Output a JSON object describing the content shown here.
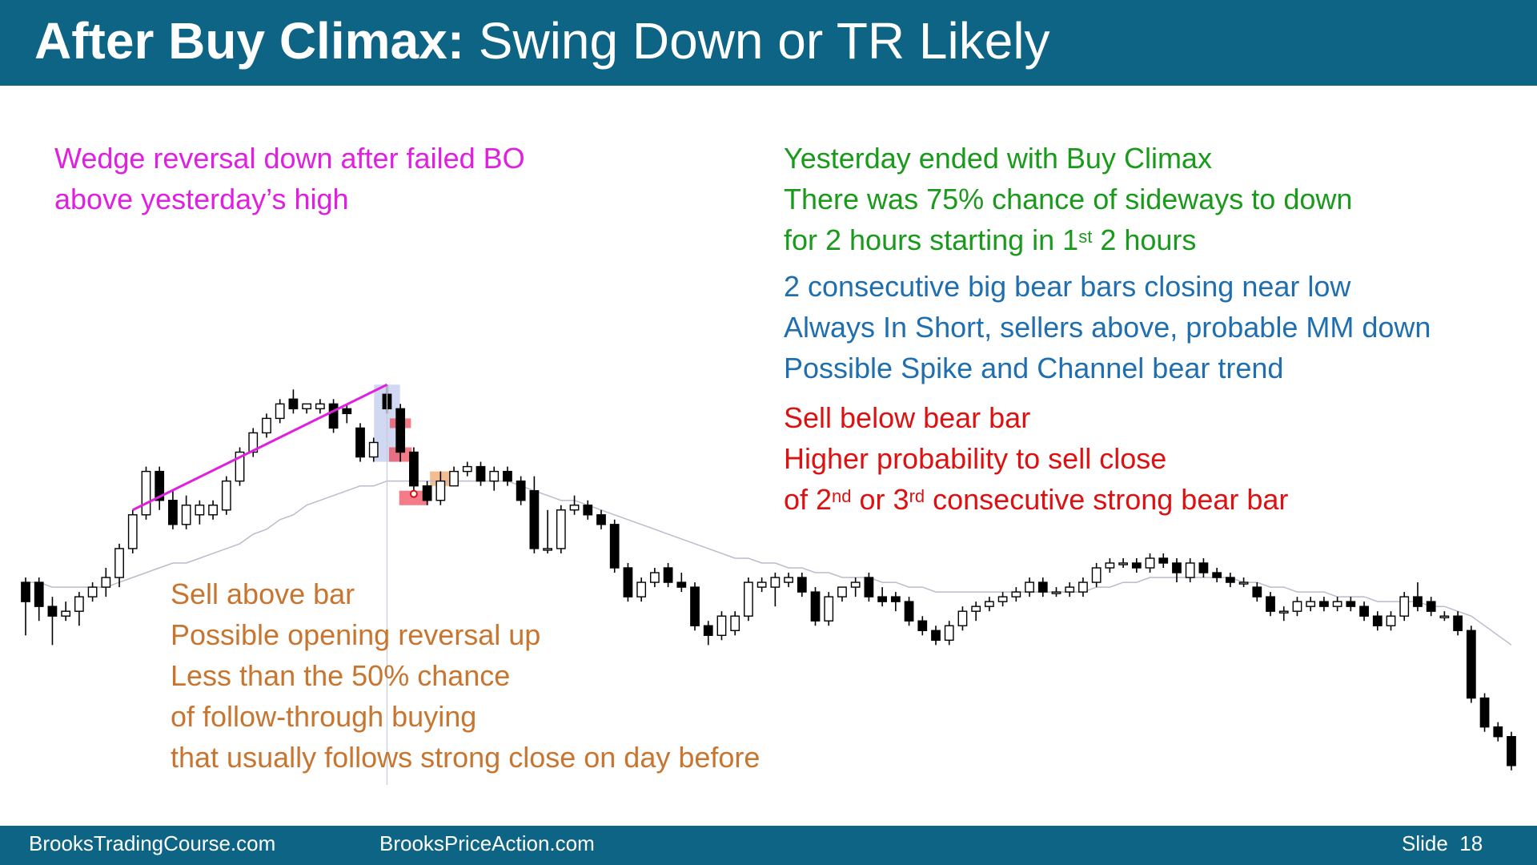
{
  "header": {
    "title_bold": "After Buy Climax:",
    "title_rest": " Swing Down or TR Likely"
  },
  "notes": {
    "wedge": [
      "Wedge reversal down after failed BO",
      "above yesterday’s high"
    ],
    "green": {
      "line1": "Yesterday ended with Buy Climax",
      "line2": "There was 75% chance of sideways to down",
      "line3_a": "for 2 hours starting in 1",
      "line3_sup": "st",
      "line3_b": " 2 hours"
    },
    "blue": [
      "2 consecutive big bear bars closing near low",
      "Always In Short, sellers above, probable MM down",
      "Possible Spike and Channel bear trend"
    ],
    "red": {
      "line1": "Sell below bear bar",
      "line2": "Higher probability to sell close",
      "line3_a": "of 2",
      "line3_sup1": "nd",
      "line3_b": " or 3",
      "line3_sup2": "rd",
      "line3_c": " consecutive strong bear bar"
    },
    "orange": [
      "Sell above bar",
      "Possible opening reversal up",
      "Less than the 50% chance",
      "of follow-through buying",
      "that usually follows strong close on day before"
    ]
  },
  "footer": {
    "site1": "BrooksTradingCourse.com",
    "site2": "BrooksPriceAction.com",
    "slide": "Slide  18"
  },
  "colors": {
    "header_bg": "#0d6485",
    "wedge_line": "#e020e0",
    "ema": "#b8bccc",
    "highlight_blue": "#aab8e8",
    "highlight_red": "#ee4455",
    "highlight_orange": "#f0a060"
  },
  "chart_data": {
    "type": "candlestick",
    "title": "",
    "xlabel": "",
    "ylabel": "",
    "ylim": [
      0,
      100
    ],
    "note": "",
    "bars": [
      {
        "o": 47,
        "h": 48,
        "l": 36,
        "c": 43
      },
      {
        "o": 47,
        "h": 48,
        "l": 39,
        "c": 42
      },
      {
        "o": 42,
        "h": 44,
        "l": 34,
        "c": 40
      },
      {
        "o": 40,
        "h": 43,
        "l": 39,
        "c": 41
      },
      {
        "o": 41,
        "h": 45,
        "l": 38,
        "c": 44
      },
      {
        "o": 44,
        "h": 47,
        "l": 43,
        "c": 46
      },
      {
        "o": 46,
        "h": 50,
        "l": 44,
        "c": 48
      },
      {
        "o": 48,
        "h": 55,
        "l": 46,
        "c": 54
      },
      {
        "o": 54,
        "h": 62,
        "l": 53,
        "c": 61
      },
      {
        "o": 61,
        "h": 71,
        "l": 60,
        "c": 70
      },
      {
        "o": 70,
        "h": 71,
        "l": 62,
        "c": 64
      },
      {
        "o": 64,
        "h": 66,
        "l": 58,
        "c": 59
      },
      {
        "o": 59,
        "h": 65,
        "l": 58,
        "c": 63
      },
      {
        "o": 61,
        "h": 64,
        "l": 59,
        "c": 63
      },
      {
        "o": 61,
        "h": 64,
        "l": 60,
        "c": 63
      },
      {
        "o": 62,
        "h": 69,
        "l": 61,
        "c": 68
      },
      {
        "o": 68,
        "h": 75,
        "l": 67,
        "c": 74
      },
      {
        "o": 74,
        "h": 79,
        "l": 73,
        "c": 78
      },
      {
        "o": 78,
        "h": 82,
        "l": 77,
        "c": 81
      },
      {
        "o": 81,
        "h": 85,
        "l": 80,
        "c": 84
      },
      {
        "o": 85,
        "h": 87,
        "l": 82,
        "c": 83
      },
      {
        "o": 83,
        "h": 84,
        "l": 82,
        "c": 84
      },
      {
        "o": 83,
        "h": 85,
        "l": 82,
        "c": 84
      },
      {
        "o": 84,
        "h": 85,
        "l": 78,
        "c": 79
      },
      {
        "o": 83,
        "h": 84,
        "l": 80,
        "c": 82
      },
      {
        "o": 79,
        "h": 80,
        "l": 72,
        "c": 73
      },
      {
        "o": 73,
        "h": 77,
        "l": 72,
        "c": 76
      },
      {
        "o": 86,
        "h": 88,
        "l": 82,
        "c": 83
      },
      {
        "o": 83,
        "h": 84,
        "l": 72,
        "c": 74
      },
      {
        "o": 74,
        "h": 75,
        "l": 66,
        "c": 67
      },
      {
        "o": 67,
        "h": 68,
        "l": 63,
        "c": 64
      },
      {
        "o": 64,
        "h": 70,
        "l": 63,
        "c": 68
      },
      {
        "o": 67,
        "h": 71,
        "l": 67,
        "c": 70
      },
      {
        "o": 70,
        "h": 72,
        "l": 69,
        "c": 71
      },
      {
        "o": 71,
        "h": 72,
        "l": 67,
        "c": 68
      },
      {
        "o": 68,
        "h": 71,
        "l": 66,
        "c": 70
      },
      {
        "o": 70,
        "h": 71,
        "l": 67,
        "c": 68
      },
      {
        "o": 68,
        "h": 69,
        "l": 63,
        "c": 64
      },
      {
        "o": 66,
        "h": 69,
        "l": 53,
        "c": 54
      },
      {
        "o": 54,
        "h": 62,
        "l": 53,
        "c": 54
      },
      {
        "o": 54,
        "h": 63,
        "l": 53,
        "c": 62
      },
      {
        "o": 62,
        "h": 65,
        "l": 61,
        "c": 63
      },
      {
        "o": 63,
        "h": 64,
        "l": 60,
        "c": 61
      },
      {
        "o": 61,
        "h": 62,
        "l": 58,
        "c": 59
      },
      {
        "o": 59,
        "h": 60,
        "l": 49,
        "c": 50
      },
      {
        "o": 50,
        "h": 51,
        "l": 43,
        "c": 44
      },
      {
        "o": 44,
        "h": 48,
        "l": 43,
        "c": 47
      },
      {
        "o": 47,
        "h": 50,
        "l": 46,
        "c": 49
      },
      {
        "o": 50,
        "h": 51,
        "l": 46,
        "c": 47
      },
      {
        "o": 47,
        "h": 49,
        "l": 45,
        "c": 46
      },
      {
        "o": 46,
        "h": 47,
        "l": 37,
        "c": 38
      },
      {
        "o": 38,
        "h": 39,
        "l": 34,
        "c": 36
      },
      {
        "o": 36,
        "h": 41,
        "l": 35,
        "c": 40
      },
      {
        "o": 37,
        "h": 41,
        "l": 36,
        "c": 40
      },
      {
        "o": 40,
        "h": 48,
        "l": 39,
        "c": 47
      },
      {
        "o": 46,
        "h": 48,
        "l": 45,
        "c": 47
      },
      {
        "o": 46,
        "h": 49,
        "l": 42,
        "c": 48
      },
      {
        "o": 47,
        "h": 49,
        "l": 46,
        "c": 48
      },
      {
        "o": 48,
        "h": 49,
        "l": 44,
        "c": 45
      },
      {
        "o": 45,
        "h": 46,
        "l": 38,
        "c": 39
      },
      {
        "o": 39,
        "h": 45,
        "l": 38,
        "c": 44
      },
      {
        "o": 44,
        "h": 46,
        "l": 43,
        "c": 46
      },
      {
        "o": 46,
        "h": 48,
        "l": 44,
        "c": 47
      },
      {
        "o": 48,
        "h": 49,
        "l": 43,
        "c": 44
      },
      {
        "o": 44,
        "h": 46,
        "l": 42,
        "c": 43
      },
      {
        "o": 44,
        "h": 45,
        "l": 41,
        "c": 43
      },
      {
        "o": 43,
        "h": 44,
        "l": 38,
        "c": 39
      },
      {
        "o": 39,
        "h": 40,
        "l": 36,
        "c": 37
      },
      {
        "o": 37,
        "h": 38,
        "l": 34,
        "c": 35
      },
      {
        "o": 35,
        "h": 39,
        "l": 34,
        "c": 38
      },
      {
        "o": 38,
        "h": 42,
        "l": 37,
        "c": 41
      },
      {
        "o": 41,
        "h": 43,
        "l": 39,
        "c": 42
      },
      {
        "o": 42,
        "h": 44,
        "l": 41,
        "c": 43
      },
      {
        "o": 43,
        "h": 45,
        "l": 42,
        "c": 44
      },
      {
        "o": 44,
        "h": 46,
        "l": 43,
        "c": 45
      },
      {
        "o": 45,
        "h": 48,
        "l": 44,
        "c": 47
      },
      {
        "o": 47,
        "h": 48,
        "l": 44,
        "c": 45
      },
      {
        "o": 45,
        "h": 46,
        "l": 44,
        "c": 45
      },
      {
        "o": 45,
        "h": 47,
        "l": 44,
        "c": 46
      },
      {
        "o": 45,
        "h": 48,
        "l": 44,
        "c": 47
      },
      {
        "o": 47,
        "h": 51,
        "l": 46,
        "c": 50
      },
      {
        "o": 50,
        "h": 52,
        "l": 49,
        "c": 51
      },
      {
        "o": 51,
        "h": 52,
        "l": 50,
        "c": 51
      },
      {
        "o": 51,
        "h": 52,
        "l": 49,
        "c": 50
      },
      {
        "o": 50,
        "h": 53,
        "l": 49,
        "c": 52
      },
      {
        "o": 52,
        "h": 53,
        "l": 50,
        "c": 51
      },
      {
        "o": 51,
        "h": 52,
        "l": 47,
        "c": 49
      },
      {
        "o": 48,
        "h": 52,
        "l": 47,
        "c": 51
      },
      {
        "o": 51,
        "h": 52,
        "l": 48,
        "c": 49
      },
      {
        "o": 49,
        "h": 50,
        "l": 47,
        "c": 48
      },
      {
        "o": 48,
        "h": 49,
        "l": 46,
        "c": 47
      },
      {
        "o": 47,
        "h": 48,
        "l": 46,
        "c": 47
      },
      {
        "o": 46,
        "h": 47,
        "l": 43,
        "c": 44
      },
      {
        "o": 44,
        "h": 45,
        "l": 40,
        "c": 41
      },
      {
        "o": 41,
        "h": 42,
        "l": 39,
        "c": 41
      },
      {
        "o": 41,
        "h": 44,
        "l": 40,
        "c": 43
      },
      {
        "o": 42,
        "h": 44,
        "l": 41,
        "c": 43
      },
      {
        "o": 43,
        "h": 44,
        "l": 41,
        "c": 42
      },
      {
        "o": 42,
        "h": 44,
        "l": 41,
        "c": 43
      },
      {
        "o": 43,
        "h": 44,
        "l": 41,
        "c": 42
      },
      {
        "o": 42,
        "h": 43,
        "l": 39,
        "c": 40
      },
      {
        "o": 40,
        "h": 41,
        "l": 37,
        "c": 38
      },
      {
        "o": 38,
        "h": 41,
        "l": 37,
        "c": 40
      },
      {
        "o": 40,
        "h": 45,
        "l": 39,
        "c": 44
      },
      {
        "o": 44,
        "h": 47,
        "l": 41,
        "c": 42
      },
      {
        "o": 43,
        "h": 44,
        "l": 40,
        "c": 41
      },
      {
        "o": 40,
        "h": 41,
        "l": 39,
        "c": 40
      },
      {
        "o": 40,
        "h": 41,
        "l": 36,
        "c": 37
      },
      {
        "o": 37,
        "h": 38,
        "l": 22,
        "c": 23
      },
      {
        "o": 23,
        "h": 24,
        "l": 16,
        "c": 17
      },
      {
        "o": 17,
        "h": 18,
        "l": 14,
        "c": 15
      },
      {
        "o": 15,
        "h": 16,
        "l": 8,
        "c": 9
      }
    ],
    "ema": [
      47,
      47,
      46,
      46,
      46,
      46,
      46,
      47,
      48,
      49,
      50,
      51,
      51,
      52,
      53,
      54,
      55,
      57,
      58,
      60,
      61,
      63,
      64,
      65,
      66,
      67,
      67,
      68,
      68,
      68,
      68,
      68,
      68,
      68,
      68,
      68,
      68,
      67,
      66,
      65,
      64,
      64,
      63,
      62,
      61,
      60,
      59,
      58,
      57,
      56,
      55,
      54,
      53,
      52,
      52,
      51,
      51,
      50,
      50,
      49,
      49,
      48,
      48,
      48,
      47,
      47,
      46,
      46,
      45,
      45,
      45,
      45,
      45,
      45,
      45,
      45,
      45,
      45,
      45,
      45,
      46,
      46,
      47,
      47,
      48,
      48,
      48,
      48,
      48,
      48,
      48,
      47,
      47,
      46,
      46,
      45,
      45,
      45,
      44,
      44,
      44,
      43,
      43,
      43,
      43,
      42,
      42,
      41,
      40,
      38,
      36,
      34
    ],
    "wedge_line": {
      "from_bar": 8,
      "to_bar": 27
    }
  }
}
